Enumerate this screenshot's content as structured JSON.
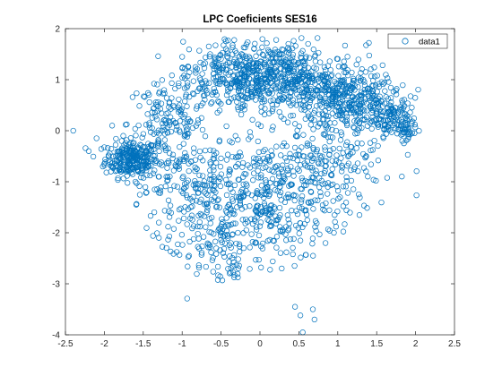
{
  "chart_data": {
    "type": "scatter",
    "title": "LPC Coeficients SES16",
    "xlabel": "",
    "ylabel": "",
    "xlim": [
      -2.5,
      2.5
    ],
    "ylim": [
      -4,
      2
    ],
    "x_ticks": [
      "-2.5",
      "-2",
      "-1.5",
      "-1",
      "-0.5",
      "0",
      "0.5",
      "1",
      "1.5",
      "2",
      "2.5"
    ],
    "y_ticks": [
      "-4",
      "-3",
      "-2",
      "-1",
      "0",
      "1",
      "2"
    ],
    "grid": false,
    "legend_position": "top-right",
    "series": [
      {
        "name": "data1",
        "color": "#0072BD",
        "marker": "open-circle",
        "clusters": [
          {
            "cx": -1.65,
            "cy": -0.55,
            "sx": 0.17,
            "sy": 0.18,
            "n": 260
          },
          {
            "cx": -1.2,
            "cy": 0.15,
            "sx": 0.25,
            "sy": 0.4,
            "n": 140
          },
          {
            "cx": -0.3,
            "cy": 1.05,
            "sx": 0.35,
            "sy": 0.35,
            "n": 380
          },
          {
            "cx": 0.35,
            "cy": 1.1,
            "sx": 0.3,
            "sy": 0.3,
            "n": 260
          },
          {
            "cx": 1.0,
            "cy": 0.7,
            "sx": 0.3,
            "sy": 0.3,
            "n": 320
          },
          {
            "cx": 1.5,
            "cy": 0.4,
            "sx": 0.22,
            "sy": 0.25,
            "n": 160
          },
          {
            "cx": 1.85,
            "cy": 0.05,
            "sx": 0.12,
            "sy": 0.12,
            "n": 60
          },
          {
            "cx": -0.9,
            "cy": -0.9,
            "sx": 0.35,
            "sy": 0.5,
            "n": 180
          },
          {
            "cx": 0.0,
            "cy": -1.1,
            "sx": 0.45,
            "sy": 0.55,
            "n": 260
          },
          {
            "cx": 0.85,
            "cy": -0.7,
            "sx": 0.4,
            "sy": 0.45,
            "n": 200
          },
          {
            "cx": -0.6,
            "cy": -2.1,
            "sx": 0.3,
            "sy": 0.35,
            "n": 100
          },
          {
            "cx": 0.3,
            "cy": -2.0,
            "sx": 0.35,
            "sy": 0.35,
            "n": 90
          },
          {
            "cx": -0.4,
            "cy": -2.7,
            "sx": 0.2,
            "sy": 0.15,
            "n": 25
          }
        ],
        "outliers": [
          [
            -2.4,
            0.0
          ],
          [
            -2.1,
            -0.15
          ],
          [
            -2.2,
            -0.4
          ],
          [
            -1.9,
            0.1
          ],
          [
            0.45,
            -3.45
          ],
          [
            0.52,
            -3.62
          ],
          [
            0.68,
            -3.5
          ],
          [
            0.7,
            -3.7
          ],
          [
            0.55,
            -3.95
          ],
          [
            -1.3,
            -2.1
          ],
          [
            -1.3,
            -1.8
          ],
          [
            -1.6,
            -1.0
          ]
        ]
      }
    ]
  }
}
